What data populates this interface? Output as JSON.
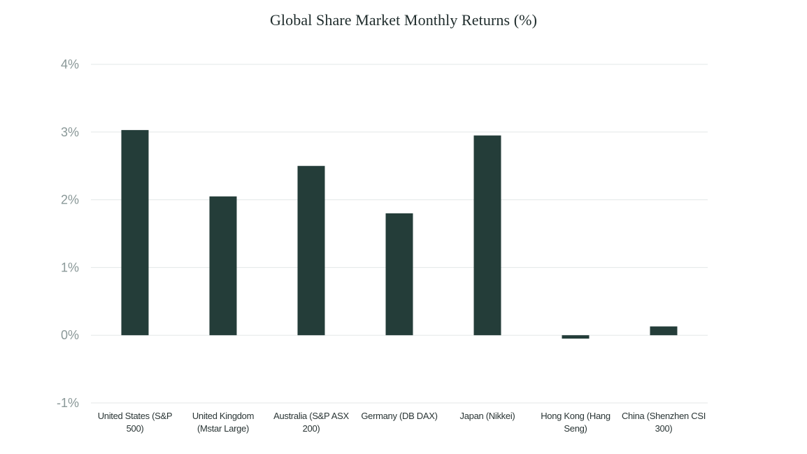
{
  "chart_data": {
    "type": "bar",
    "title": "Global Share Market Monthly Returns (%)",
    "xlabel": "",
    "ylabel": "",
    "categories": [
      "United States (S&P 500)",
      "United Kingdom (Mstar Large)",
      "Australia (S&P ASX 200)",
      "Germany (DB DAX)",
      "Japan (Nikkei)",
      "Hong Kong (Hang Seng)",
      "China (Shenzhen CSI 300)"
    ],
    "category_label_lines": [
      [
        "United States (S&P",
        "500)"
      ],
      [
        "United Kingdom",
        "(Mstar Large)"
      ],
      [
        "Australia (S&P ASX",
        "200)"
      ],
      [
        "Germany (DB DAX)"
      ],
      [
        "Japan (Nikkei)"
      ],
      [
        "Hong Kong (Hang",
        "Seng)"
      ],
      [
        "China (Shenzhen CSI",
        "300)"
      ]
    ],
    "values": [
      3.03,
      2.05,
      2.5,
      1.8,
      2.95,
      -0.05,
      0.13
    ],
    "ylim": [
      -1,
      4
    ],
    "yticks": [
      -1,
      0,
      1,
      2,
      3,
      4
    ],
    "ytick_labels": [
      "-1%",
      "0%",
      "1%",
      "2%",
      "3%",
      "4%"
    ],
    "grid": true,
    "legend": "none",
    "colors": {
      "bar": "#243d39",
      "grid": "#e3e7e7",
      "tick_text": "#8a9898",
      "title_text": "#1e2b2b"
    }
  }
}
